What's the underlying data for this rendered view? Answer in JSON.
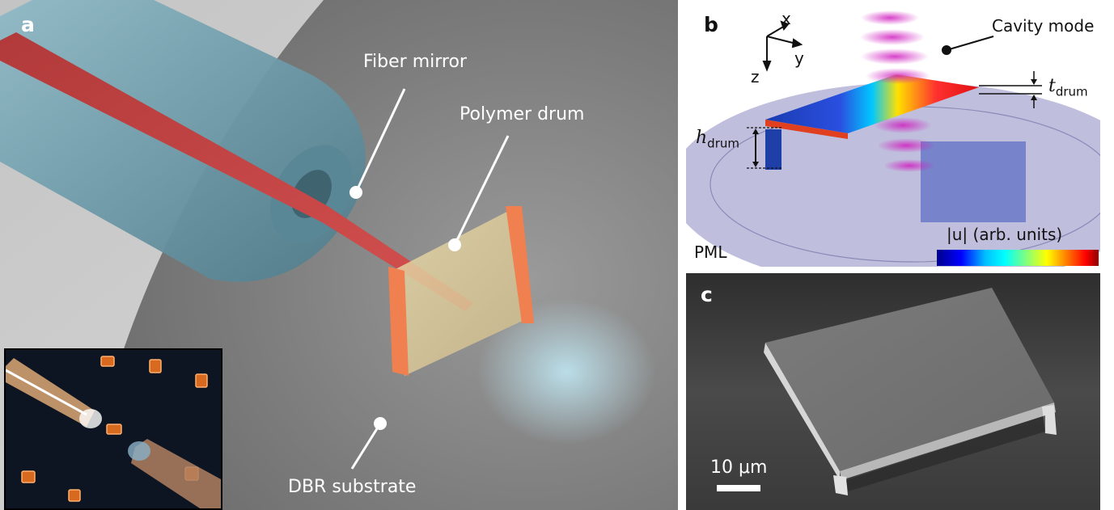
{
  "panel_a": {
    "label": "a",
    "labels": {
      "fiber_mirror": "Fiber mirror",
      "polymer_drum": "Polymer drum",
      "dbr_substrate": "DBR substrate"
    }
  },
  "panel_b": {
    "label": "b",
    "labels": {
      "cavity_mode": "Cavity mode",
      "pml": "PML",
      "colorbar_label": "|u| (arb. units)",
      "t_symbol": "t",
      "t_sub": "drum",
      "h_symbol": "h",
      "h_sub": "drum"
    },
    "axes": {
      "x": "x",
      "y": "y",
      "z": "z"
    },
    "colormap": [
      "#00008b",
      "#0000ff",
      "#00bfff",
      "#00ffff",
      "#7fff7f",
      "#ffff00",
      "#ff7f00",
      "#ff0000",
      "#8b0000"
    ]
  },
  "panel_c": {
    "label": "c",
    "scale_bar": "10 μm"
  }
}
